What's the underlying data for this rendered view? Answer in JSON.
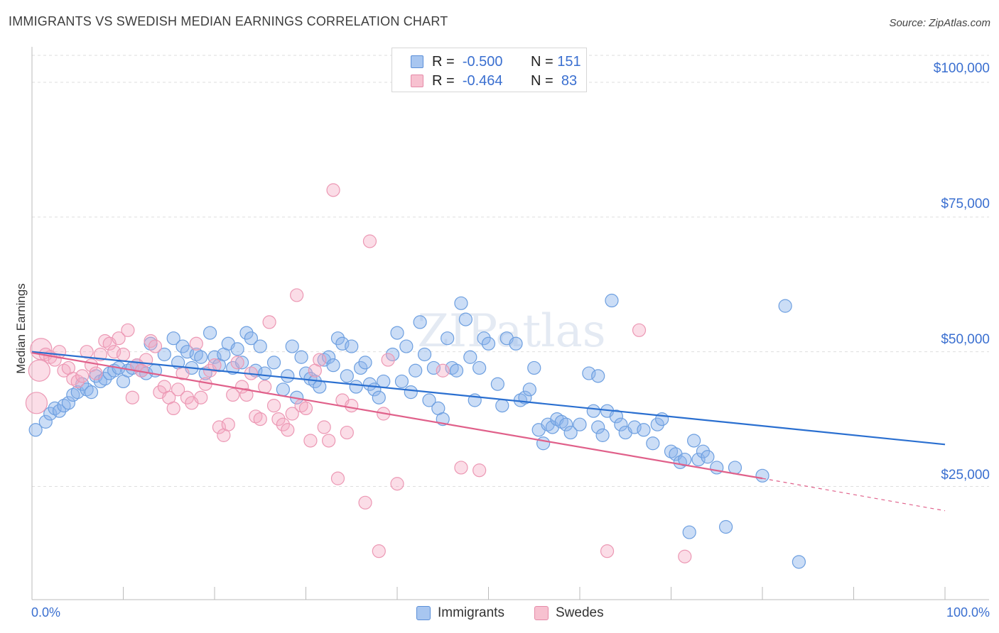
{
  "title": "IMMIGRANTS VS SWEDISH MEDIAN EARNINGS CORRELATION CHART",
  "source": "Source: ZipAtlas.com",
  "watermark": "ZIPatlas",
  "legend_top": [
    {
      "r_label": "R =",
      "r_value": "-0.500",
      "n_label": "N =",
      "n_value": "151",
      "color": "#a8c6f0",
      "border": "#5b8fd8"
    },
    {
      "r_label": "R =",
      "r_value": "-0.464",
      "n_label": "N =",
      "n_value": " 83",
      "color": "#f7c1d0",
      "border": "#e58aa8"
    }
  ],
  "legend_bottom": [
    {
      "label": "Immigrants",
      "color": "#a8c6f0",
      "border": "#5b8fd8"
    },
    {
      "label": "Swedes",
      "color": "#f7c1d0",
      "border": "#e58aa8"
    }
  ],
  "chart_data": {
    "type": "scatter",
    "title": "IMMIGRANTS VS SWEDISH MEDIAN EARNINGS CORRELATION CHART",
    "xlabel": "",
    "ylabel": "Median Earnings",
    "x_tick_labels": [
      "0.0%",
      "100.0%"
    ],
    "y_tick_labels": [
      "$25,000",
      "$50,000",
      "$75,000",
      "$100,000"
    ],
    "y_ticks": [
      25000,
      50000,
      75000,
      100000
    ],
    "xlim": [
      0,
      100
    ],
    "ylim": [
      4000,
      105000
    ],
    "grid": true,
    "legend_position": "top-center",
    "series": [
      {
        "name": "Immigrants",
        "color": "#6fa0e0",
        "trend": {
          "x": [
            0,
            100
          ],
          "y": [
            50000,
            32800
          ],
          "color": "#2a6fd0"
        },
        "points": [
          [
            0.4,
            35500
          ],
          [
            1.5,
            37000
          ],
          [
            2.0,
            38500
          ],
          [
            2.5,
            39500
          ],
          [
            3.0,
            39000
          ],
          [
            3.5,
            40000
          ],
          [
            4.0,
            40500
          ],
          [
            4.5,
            42000
          ],
          [
            5.0,
            42500
          ],
          [
            5.5,
            44000
          ],
          [
            6.0,
            43000
          ],
          [
            6.5,
            42500
          ],
          [
            7.0,
            45500
          ],
          [
            7.5,
            44500
          ],
          [
            8.0,
            45000
          ],
          [
            8.5,
            46000
          ],
          [
            9.0,
            46500
          ],
          [
            9.5,
            47000
          ],
          [
            10.0,
            44500
          ],
          [
            10.5,
            46500
          ],
          [
            11.0,
            47000
          ],
          [
            11.5,
            47500
          ],
          [
            12.0,
            46500
          ],
          [
            12.5,
            46000
          ],
          [
            13.0,
            51500
          ],
          [
            13.5,
            46500
          ],
          [
            14.5,
            49500
          ],
          [
            15.5,
            52500
          ],
          [
            16.0,
            48000
          ],
          [
            16.5,
            51000
          ],
          [
            17.0,
            50000
          ],
          [
            17.5,
            47000
          ],
          [
            18.0,
            49500
          ],
          [
            18.5,
            49000
          ],
          [
            19.0,
            46000
          ],
          [
            19.5,
            53500
          ],
          [
            20.0,
            49000
          ],
          [
            20.5,
            47500
          ],
          [
            21.0,
            49500
          ],
          [
            21.5,
            51500
          ],
          [
            22.0,
            47000
          ],
          [
            22.5,
            50500
          ],
          [
            23.0,
            48000
          ],
          [
            23.5,
            53500
          ],
          [
            24.0,
            52500
          ],
          [
            24.5,
            46500
          ],
          [
            25.0,
            51000
          ],
          [
            25.5,
            46000
          ],
          [
            26.5,
            48000
          ],
          [
            27.5,
            43000
          ],
          [
            28.0,
            45500
          ],
          [
            28.5,
            51000
          ],
          [
            29.0,
            41500
          ],
          [
            29.5,
            49000
          ],
          [
            30.0,
            46000
          ],
          [
            30.5,
            45000
          ],
          [
            31.0,
            44500
          ],
          [
            31.5,
            43500
          ],
          [
            32.0,
            48500
          ],
          [
            32.5,
            49000
          ],
          [
            33.0,
            47500
          ],
          [
            33.5,
            52500
          ],
          [
            34.0,
            51500
          ],
          [
            34.5,
            45500
          ],
          [
            35.0,
            51000
          ],
          [
            35.5,
            43500
          ],
          [
            36.0,
            47000
          ],
          [
            36.5,
            48000
          ],
          [
            37.0,
            44000
          ],
          [
            37.5,
            43000
          ],
          [
            38.0,
            41500
          ],
          [
            38.5,
            44500
          ],
          [
            39.5,
            49500
          ],
          [
            40.0,
            53500
          ],
          [
            40.5,
            44500
          ],
          [
            41.0,
            51000
          ],
          [
            41.5,
            42500
          ],
          [
            42.0,
            46500
          ],
          [
            42.5,
            55500
          ],
          [
            43.0,
            49500
          ],
          [
            43.5,
            41000
          ],
          [
            44.0,
            47000
          ],
          [
            44.5,
            39500
          ],
          [
            45.0,
            37500
          ],
          [
            45.5,
            52500
          ],
          [
            46.0,
            47000
          ],
          [
            46.5,
            46500
          ],
          [
            47.0,
            59000
          ],
          [
            47.5,
            56000
          ],
          [
            48.0,
            49000
          ],
          [
            48.5,
            41000
          ],
          [
            49.0,
            47000
          ],
          [
            49.5,
            52500
          ],
          [
            50.0,
            51500
          ],
          [
            51.0,
            44000
          ],
          [
            51.5,
            40000
          ],
          [
            52.0,
            52500
          ],
          [
            53.0,
            51500
          ],
          [
            53.5,
            41000
          ],
          [
            54.0,
            41500
          ],
          [
            54.5,
            43000
          ],
          [
            55.0,
            47000
          ],
          [
            55.5,
            35500
          ],
          [
            56.0,
            33000
          ],
          [
            56.5,
            36500
          ],
          [
            57.0,
            36000
          ],
          [
            57.5,
            37500
          ],
          [
            58.0,
            37000
          ],
          [
            58.5,
            36500
          ],
          [
            59.0,
            35000
          ],
          [
            60.0,
            36500
          ],
          [
            61.0,
            46000
          ],
          [
            61.5,
            39000
          ],
          [
            62.0,
            36000
          ],
          [
            62.5,
            34500
          ],
          [
            63.0,
            39000
          ],
          [
            63.5,
            59500
          ],
          [
            64.0,
            38000
          ],
          [
            64.5,
            36500
          ],
          [
            65.0,
            35000
          ],
          [
            66.0,
            36000
          ],
          [
            67.0,
            35500
          ],
          [
            68.0,
            33000
          ],
          [
            68.5,
            36500
          ],
          [
            69.0,
            37500
          ],
          [
            70.0,
            31500
          ],
          [
            70.5,
            31000
          ],
          [
            71.0,
            29500
          ],
          [
            71.5,
            30000
          ],
          [
            72.0,
            16500
          ],
          [
            72.5,
            33500
          ],
          [
            73.0,
            30000
          ],
          [
            73.5,
            31500
          ],
          [
            74.0,
            30500
          ],
          [
            75.0,
            28500
          ],
          [
            76.0,
            17500
          ],
          [
            77.0,
            28500
          ],
          [
            80.0,
            27000
          ],
          [
            82.5,
            58500
          ],
          [
            84.0,
            11000
          ],
          [
            62.0,
            45500
          ]
        ]
      },
      {
        "name": "Swedes",
        "color": "#f4a6bd",
        "trend": {
          "x": [
            0,
            80
          ],
          "y": [
            49800,
            26500
          ],
          "dashed_to": [
            100,
            20500
          ],
          "color": "#e0608a"
        },
        "points": [
          [
            0.5,
            40500
          ],
          [
            0.8,
            46500
          ],
          [
            1.0,
            50500
          ],
          [
            1.5,
            49500
          ],
          [
            2.0,
            49000
          ],
          [
            2.5,
            48500
          ],
          [
            3.0,
            50000
          ],
          [
            3.5,
            46500
          ],
          [
            4.0,
            47000
          ],
          [
            4.5,
            45000
          ],
          [
            5.0,
            44500
          ],
          [
            5.5,
            45500
          ],
          [
            6.0,
            50000
          ],
          [
            6.5,
            47500
          ],
          [
            7.0,
            46000
          ],
          [
            7.5,
            49500
          ],
          [
            8.0,
            52000
          ],
          [
            8.5,
            51500
          ],
          [
            9.0,
            50000
          ],
          [
            9.5,
            52500
          ],
          [
            10.0,
            49500
          ],
          [
            10.5,
            54000
          ],
          [
            11.0,
            41500
          ],
          [
            11.5,
            47500
          ],
          [
            12.0,
            46500
          ],
          [
            12.5,
            48500
          ],
          [
            13.0,
            52000
          ],
          [
            13.5,
            51000
          ],
          [
            14.0,
            42500
          ],
          [
            14.5,
            43500
          ],
          [
            15.0,
            41500
          ],
          [
            15.5,
            39500
          ],
          [
            16.0,
            43000
          ],
          [
            16.5,
            46000
          ],
          [
            17.0,
            41500
          ],
          [
            17.5,
            40500
          ],
          [
            18.0,
            51500
          ],
          [
            18.5,
            41500
          ],
          [
            19.0,
            44000
          ],
          [
            19.5,
            46500
          ],
          [
            20.0,
            47500
          ],
          [
            20.5,
            36000
          ],
          [
            21.0,
            34500
          ],
          [
            21.5,
            36500
          ],
          [
            22.0,
            42000
          ],
          [
            22.5,
            48000
          ],
          [
            23.0,
            43500
          ],
          [
            23.5,
            42000
          ],
          [
            24.0,
            46000
          ],
          [
            24.5,
            38000
          ],
          [
            25.0,
            37500
          ],
          [
            25.5,
            43500
          ],
          [
            26.0,
            55500
          ],
          [
            26.5,
            40000
          ],
          [
            27.0,
            37500
          ],
          [
            27.5,
            36500
          ],
          [
            28.0,
            35500
          ],
          [
            28.5,
            38500
          ],
          [
            29.0,
            60500
          ],
          [
            29.5,
            40000
          ],
          [
            30.0,
            39500
          ],
          [
            30.5,
            33500
          ],
          [
            31.0,
            46500
          ],
          [
            31.5,
            48500
          ],
          [
            32.0,
            36000
          ],
          [
            32.5,
            33500
          ],
          [
            33.0,
            80000
          ],
          [
            33.5,
            26500
          ],
          [
            34.0,
            41000
          ],
          [
            34.5,
            35000
          ],
          [
            35.0,
            40000
          ],
          [
            36.5,
            22000
          ],
          [
            37.0,
            70500
          ],
          [
            38.0,
            13000
          ],
          [
            38.5,
            38500
          ],
          [
            39.0,
            48500
          ],
          [
            40.0,
            25500
          ],
          [
            45.0,
            46500
          ],
          [
            47.0,
            28500
          ],
          [
            49.0,
            28000
          ],
          [
            63.0,
            13000
          ],
          [
            66.5,
            54000
          ],
          [
            71.5,
            12000
          ]
        ]
      }
    ]
  }
}
